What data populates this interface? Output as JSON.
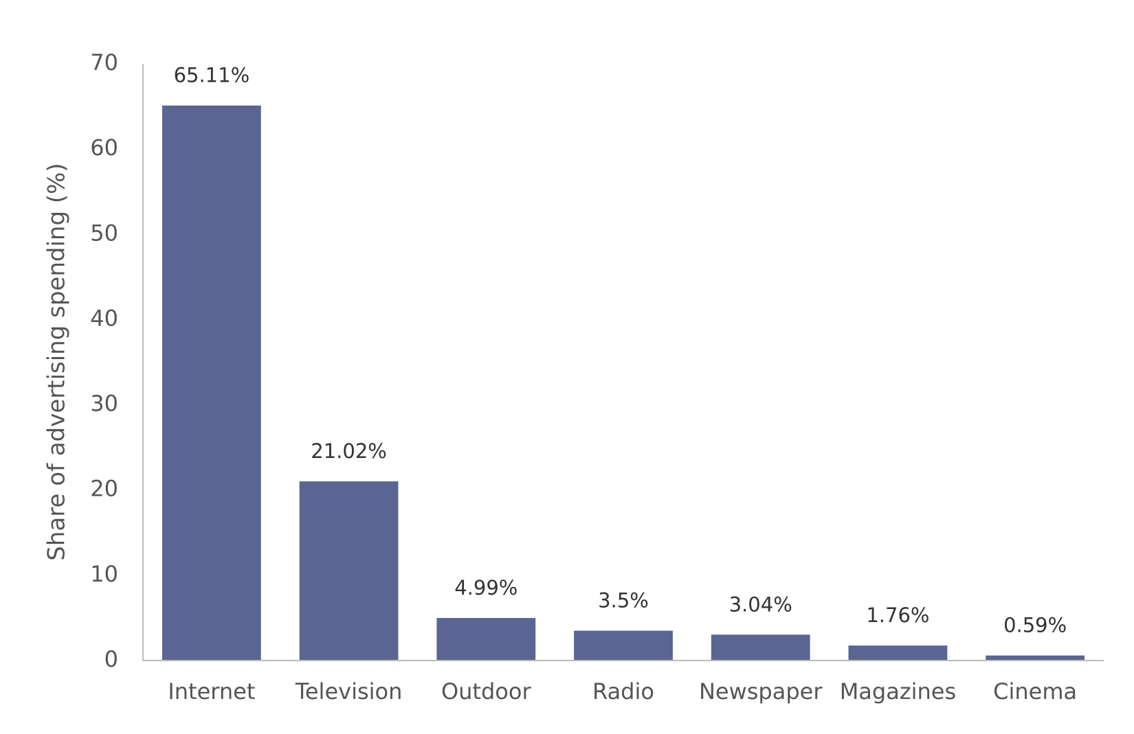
{
  "chart_data": {
    "type": "bar",
    "y_label": "Share of advertising spending (%)",
    "categories": [
      "Internet",
      "Television",
      "Outdoor",
      "Radio",
      "Newspaper",
      "Magazines",
      "Cinema"
    ],
    "values": [
      65.11,
      21.02,
      4.99,
      3.5,
      3.04,
      1.76,
      0.59
    ],
    "value_labels": [
      "65.11%",
      "21.02%",
      "4.99%",
      "3.5%",
      "3.04%",
      "1.76%",
      "0.59%"
    ],
    "color": "#5a6691",
    "ylim": [
      0,
      70
    ],
    "yticks": [
      0,
      10,
      20,
      30,
      40,
      50,
      60,
      70
    ],
    "grid": false
  }
}
